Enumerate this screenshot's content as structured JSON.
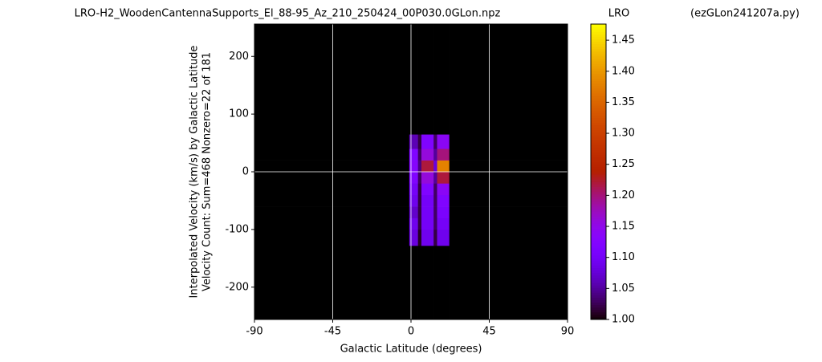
{
  "chart_data": {
    "type": "heatmap",
    "title": "LRO-H2_WoodenCantennaSupports_El_88-95_Az_210_250424_00P030.0GLon.npz",
    "colorbar_title": "LRO",
    "script_name": "(ezGLon241207a.py)",
    "ylabel": [
      "Interpolated Velocity (km/s) by Galactic Latitude",
      "Velocity Count: Sum=468 Nonzero=22 of 181"
    ],
    "xlabel": "Galactic Latitude (degrees)",
    "xlim": [
      -90,
      90
    ],
    "xticks": [
      -90,
      -45,
      0,
      45,
      90
    ],
    "ylim": [
      -256,
      256
    ],
    "yticks": [
      -200,
      -100,
      0,
      100,
      200
    ],
    "grid_lines": {
      "color": "#ffffff",
      "x": [
        -45,
        0,
        45
      ],
      "y": [
        0
      ]
    },
    "colormap": "gnuplot",
    "clim": [
      1.0,
      1.476
    ],
    "cticks": [
      {
        "value": 1.0,
        "label": "1.00"
      },
      1.05,
      {
        "value": 1.1,
        "label": "1.10"
      },
      1.15,
      {
        "value": 1.2,
        "label": "1.20"
      },
      1.25,
      {
        "value": 1.3,
        "label": "1.30"
      },
      1.35,
      {
        "value": 1.4,
        "label": "1.40"
      },
      1.45
    ],
    "xbins": [
      -90,
      -1,
      4,
      6,
      13,
      15,
      22,
      90
    ],
    "ybins": [
      -256,
      -128,
      -100,
      -80,
      -60,
      -40,
      -20,
      0,
      20,
      40,
      65,
      256
    ],
    "z": [
      [
        1.0,
        1.0,
        1.0,
        1.0,
        1.0,
        1.0,
        1.0
      ],
      [
        1.0,
        1.08,
        1.01,
        1.09,
        1.02,
        1.09,
        1.0
      ],
      [
        1.0,
        1.09,
        1.02,
        1.1,
        1.03,
        1.1,
        1.0
      ],
      [
        1.0,
        1.07,
        1.02,
        1.1,
        1.03,
        1.11,
        1.0
      ],
      [
        1.0,
        1.09,
        1.02,
        1.1,
        1.03,
        1.12,
        1.0
      ],
      [
        1.0,
        1.1,
        1.02,
        1.12,
        1.03,
        1.14,
        1.0
      ],
      [
        1.0,
        1.12,
        1.03,
        1.16,
        1.05,
        1.22,
        1.0
      ],
      [
        1.0,
        1.13,
        1.04,
        1.22,
        1.08,
        1.38,
        1.0
      ],
      [
        1.0,
        1.12,
        1.03,
        1.16,
        1.05,
        1.2,
        1.0
      ],
      [
        1.0,
        1.06,
        1.02,
        1.12,
        1.03,
        1.14,
        1.0
      ],
      [
        1.0,
        1.0,
        1.0,
        1.0,
        1.0,
        1.0,
        1.0
      ]
    ]
  }
}
